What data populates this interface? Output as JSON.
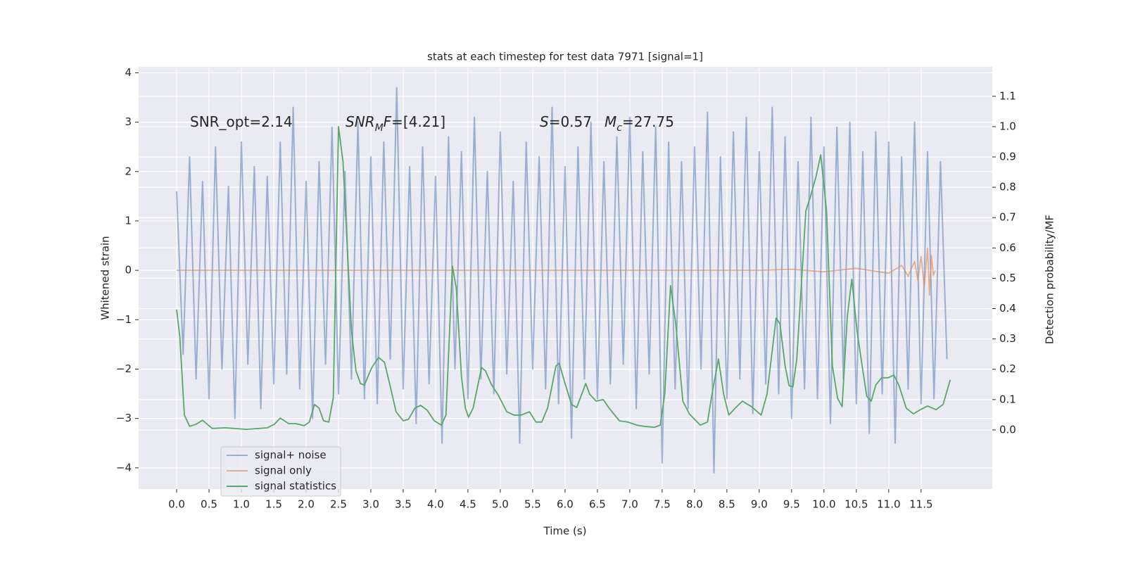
{
  "chart_data": {
    "type": "line",
    "title": "stats at each timestep for test data 7971 [signal=1]",
    "xlabel": "Time (s)",
    "ylabel": "Whitened strain",
    "y2label": "Detection probability/MF",
    "xlim": [
      -0.587,
      12.6
    ],
    "ylim": [
      -4.43,
      4.12
    ],
    "y2lim": [
      -0.195,
      1.197
    ],
    "xticks": [
      {
        "value": 0,
        "label": "0.0"
      },
      0.5,
      {
        "value": 1,
        "label": "1.0"
      },
      1.5,
      {
        "value": 2,
        "label": "2.0"
      },
      2.5,
      {
        "value": 3,
        "label": "3.0"
      },
      3.5,
      {
        "value": 4,
        "label": "4.0"
      },
      4.5,
      {
        "value": 5,
        "label": "5.0"
      },
      5.5,
      {
        "value": 6,
        "label": "6.0"
      },
      6.5,
      {
        "value": 7,
        "label": "7.0"
      },
      7.5,
      {
        "value": 8,
        "label": "8.0"
      },
      8.5,
      {
        "value": 9,
        "label": "9.0"
      },
      9.5,
      {
        "value": 10,
        "label": "10.0"
      },
      10.5,
      {
        "value": 11,
        "label": "11.0"
      },
      11.5
    ],
    "yticks": [
      {
        "value": -4,
        "label": "−4"
      },
      {
        "value": -3,
        "label": "−3"
      },
      {
        "value": -2,
        "label": "−2"
      },
      {
        "value": -1,
        "label": "−1"
      },
      0,
      1,
      2,
      3,
      4
    ],
    "y2ticks": [
      {
        "value": 0,
        "label": "0.0"
      },
      0.1,
      0.2,
      0.3,
      0.4,
      0.5,
      0.6,
      0.7,
      0.8,
      0.9,
      {
        "value": 1,
        "label": "1.0"
      },
      1.1
    ],
    "grid": true,
    "legend": "lower left",
    "annotations": [
      [
        {
          "text": "SNR_opt=2.14",
          "style": "normal"
        }
      ],
      [
        {
          "text": "SNR",
          "style": "italic"
        },
        {
          "text": "M",
          "style": "sub"
        },
        {
          "text": "F",
          "style": "italic"
        },
        {
          "text": "=[4.21]",
          "style": "normal"
        }
      ],
      [
        {
          "text": "S",
          "style": "italic"
        },
        {
          "text": "=0.57",
          "style": "normal"
        }
      ],
      [
        {
          "text": "M",
          "style": "italic"
        },
        {
          "text": "c",
          "style": "sub"
        },
        {
          "text": "=27.75",
          "style": "normal"
        }
      ]
    ],
    "series": [
      {
        "name": "signal+ noise",
        "color": "#4c72b0",
        "alpha": 0.5,
        "x": [
          0,
          0.1,
          0.2,
          0.3,
          0.4,
          0.5,
          0.6,
          0.7,
          0.8,
          0.9,
          1,
          1.1,
          1.2,
          1.3,
          1.4,
          1.5,
          1.6,
          1.7,
          1.8,
          1.9,
          2,
          2.1,
          2.2,
          2.3,
          2.4,
          2.5,
          2.6,
          2.7,
          2.8,
          2.9,
          3,
          3.1,
          3.2,
          3.3,
          3.4,
          3.5,
          3.6,
          3.7,
          3.8,
          3.9,
          4,
          4.1,
          4.2,
          4.3,
          4.4,
          4.5,
          4.6,
          4.7,
          4.8,
          4.9,
          5,
          5.1,
          5.2,
          5.3,
          5.4,
          5.5,
          5.6,
          5.7,
          5.8,
          5.9,
          6,
          6.1,
          6.2,
          6.3,
          6.4,
          6.5,
          6.6,
          6.7,
          6.8,
          6.9,
          7,
          7.1,
          7.2,
          7.3,
          7.4,
          7.5,
          7.6,
          7.7,
          7.8,
          7.9,
          8,
          8.1,
          8.2,
          8.3,
          8.4,
          8.5,
          8.6,
          8.7,
          8.8,
          8.9,
          9,
          9.1,
          9.2,
          9.3,
          9.4,
          9.5,
          9.6,
          9.7,
          9.8,
          9.9,
          10,
          10.1,
          10.2,
          10.3,
          10.4,
          10.5,
          10.6,
          10.7,
          10.8,
          10.9,
          11,
          11.1,
          11.2,
          11.3,
          11.4,
          11.5,
          11.6,
          11.7,
          11.8,
          11.9
        ],
        "values": [
          1.6,
          -1.7,
          2.3,
          -2.2,
          1.8,
          -2.6,
          2.5,
          -2.0,
          1.7,
          -3.0,
          2.6,
          -1.9,
          2.1,
          -2.8,
          1.9,
          -2.3,
          2.6,
          -2.1,
          3.3,
          -2.4,
          1.8,
          -3.0,
          2.2,
          -1.9,
          2.9,
          -2.5,
          2.0,
          -2.2,
          3.0,
          -2.6,
          2.3,
          -2.7,
          2.6,
          -1.8,
          3.7,
          -2.4,
          2.1,
          -3.1,
          2.5,
          -2.3,
          1.9,
          -3.5,
          2.7,
          -2.0,
          2.4,
          -2.6,
          3.1,
          -2.2,
          2.0,
          -2.5,
          2.8,
          -2.1,
          1.8,
          -3.5,
          2.6,
          -2.0,
          2.3,
          -2.4,
          3.3,
          -2.7,
          2.1,
          -3.4,
          2.5,
          -2.2,
          3.0,
          -2.6,
          2.2,
          -2.3,
          2.7,
          -1.9,
          3.1,
          -2.8,
          2.4,
          -2.1,
          2.9,
          -3.9,
          2.6,
          -2.4,
          2.2,
          -2.8,
          2.5,
          -2.0,
          3.2,
          -4.1,
          2.3,
          -2.6,
          2.8,
          -2.2,
          3.1,
          -2.9,
          2.4,
          -2.3,
          3.3,
          -2.5,
          2.7,
          -3.0,
          2.2,
          -2.4,
          3.1,
          -2.6,
          2.5,
          -3.1,
          2.9,
          -2.2,
          3.0,
          -2.7,
          2.4,
          -3.3,
          2.8,
          -2.5,
          2.6,
          -3.5,
          2.3,
          -2.4,
          3.0,
          -2.7,
          2.4,
          -2.6,
          2.2,
          -1.8
        ]
      },
      {
        "name": "signal only",
        "color": "#dd8452",
        "alpha": 0.6,
        "x": [
          0,
          9.0,
          9.5,
          10.0,
          10.5,
          11.0,
          11.2,
          11.3,
          11.4,
          11.45,
          11.5,
          11.55,
          11.6,
          11.63,
          11.66,
          11.69,
          11.72
        ],
        "values": [
          0,
          0,
          0.02,
          -0.03,
          0.04,
          -0.06,
          0.1,
          -0.12,
          0.18,
          -0.2,
          0.28,
          -0.32,
          0.45,
          -0.5,
          0.3,
          -0.1,
          0
        ]
      },
      {
        "name": "signal statistics",
        "color": "#55a868",
        "alpha": 1,
        "axis": "y2",
        "x": [
          0,
          0.05,
          0.12,
          0.2,
          0.3,
          0.4,
          0.55,
          0.75,
          1.08,
          1.4,
          1.51,
          1.6,
          1.73,
          1.84,
          1.97,
          2.05,
          2.13,
          2.2,
          2.27,
          2.35,
          2.42,
          2.5,
          2.57,
          2.7,
          2.77,
          2.84,
          2.9,
          3.01,
          3.12,
          3.21,
          3.29,
          3.39,
          3.5,
          3.58,
          3.68,
          3.77,
          3.87,
          3.98,
          4.09,
          4.16,
          4.26,
          4.32,
          4.4,
          4.46,
          4.51,
          4.58,
          4.71,
          4.77,
          4.86,
          4.97,
          5.1,
          5.21,
          5.32,
          5.45,
          5.55,
          5.64,
          5.73,
          5.86,
          5.91,
          6.0,
          6.1,
          6.18,
          6.32,
          6.38,
          6.48,
          6.59,
          6.68,
          6.84,
          6.97,
          7.11,
          7.22,
          7.38,
          7.47,
          7.54,
          7.63,
          7.71,
          7.82,
          7.92,
          8.09,
          8.2,
          8.27,
          8.37,
          8.45,
          8.53,
          8.63,
          8.74,
          8.88,
          9.03,
          9.12,
          9.26,
          9.32,
          9.4,
          9.46,
          9.52,
          9.58,
          9.72,
          9.79,
          9.88,
          9.95,
          10.04,
          10.13,
          10.21,
          10.28,
          10.36,
          10.43,
          10.51,
          10.59,
          10.66,
          10.73,
          10.8,
          10.89,
          10.99,
          11.08,
          11.16,
          11.27,
          11.38,
          11.49,
          11.6,
          11.73,
          11.84,
          11.95
        ],
        "values": [
          0.397,
          0.304,
          0.049,
          0.012,
          0.019,
          0.032,
          0.005,
          0.007,
          0.002,
          0.007,
          0.019,
          0.039,
          0.021,
          0.021,
          0.014,
          0.026,
          0.084,
          0.072,
          0.03,
          0.026,
          0.107,
          1.0,
          0.884,
          0.327,
          0.195,
          0.153,
          0.148,
          0.204,
          0.239,
          0.223,
          0.153,
          0.06,
          0.03,
          0.035,
          0.072,
          0.081,
          0.065,
          0.03,
          0.016,
          0.049,
          0.541,
          0.466,
          0.176,
          0.072,
          0.042,
          0.072,
          0.206,
          0.195,
          0.151,
          0.114,
          0.06,
          0.049,
          0.049,
          0.06,
          0.026,
          0.026,
          0.072,
          0.211,
          0.22,
          0.153,
          0.084,
          0.074,
          0.153,
          0.118,
          0.095,
          0.1,
          0.072,
          0.03,
          0.026,
          0.016,
          0.012,
          0.009,
          0.016,
          0.118,
          0.476,
          0.35,
          0.095,
          0.053,
          0.016,
          0.026,
          0.118,
          0.234,
          0.118,
          0.049,
          0.072,
          0.095,
          0.077,
          0.049,
          0.118,
          0.369,
          0.35,
          0.211,
          0.146,
          0.142,
          0.234,
          0.722,
          0.768,
          0.838,
          0.907,
          0.722,
          0.211,
          0.104,
          0.077,
          0.374,
          0.497,
          0.327,
          0.211,
          0.111,
          0.095,
          0.148,
          0.172,
          0.172,
          0.181,
          0.146,
          0.072,
          0.053,
          0.067,
          0.079,
          0.067,
          0.084,
          0.165
        ]
      }
    ]
  }
}
